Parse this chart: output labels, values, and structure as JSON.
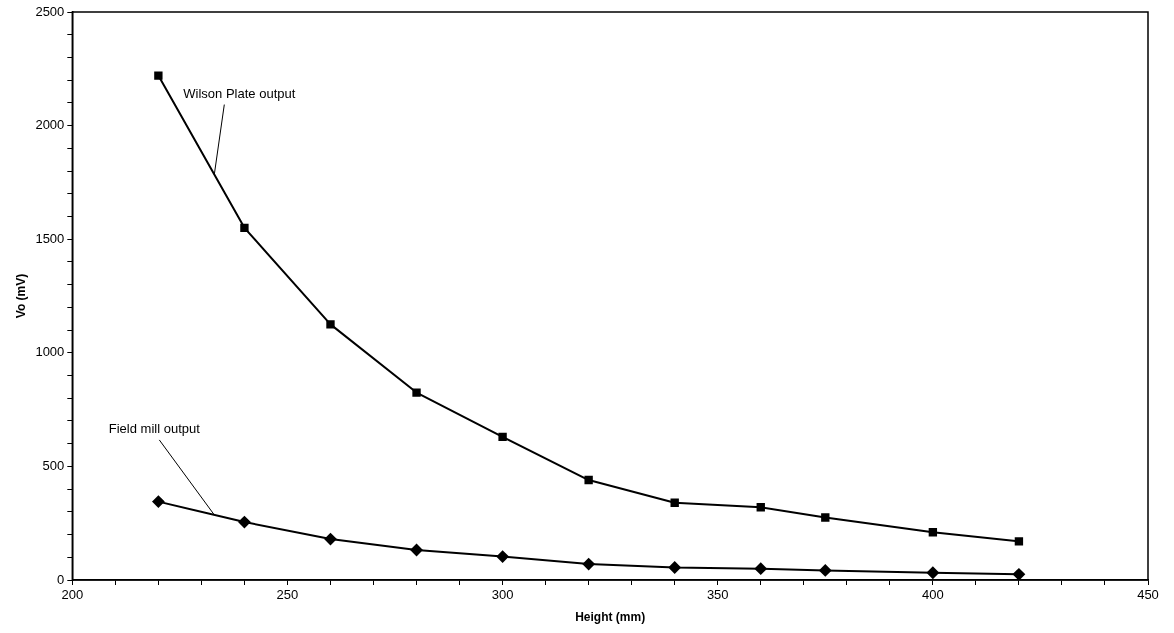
{
  "chart_data": {
    "type": "line",
    "xlabel": "Height (mm)",
    "ylabel": "Vo (mV)",
    "x": [
      220,
      240,
      260,
      280,
      300,
      320,
      340,
      360,
      375,
      400,
      420
    ],
    "series": [
      {
        "name": "Wilson Plate output",
        "color": "#000000",
        "marker": "square",
        "values": [
          2220,
          1550,
          1125,
          825,
          630,
          440,
          340,
          320,
          275,
          210,
          170
        ]
      },
      {
        "name": "Field mill output",
        "color": "#000000",
        "marker": "diamond",
        "values": [
          345,
          255,
          180,
          132,
          103,
          70,
          55,
          50,
          42,
          32,
          25
        ]
      }
    ],
    "xlim": [
      200,
      450
    ],
    "ylim": [
      0,
      2500
    ],
    "xticks": [
      200,
      {
        "value": 210,
        "label": null
      },
      {
        "value": 220,
        "label": null
      },
      {
        "value": 230,
        "label": null
      },
      {
        "value": 240,
        "label": null
      },
      250,
      {
        "value": 260,
        "label": null
      },
      {
        "value": 270,
        "label": null
      },
      {
        "value": 280,
        "label": null
      },
      {
        "value": 290,
        "label": null
      },
      300,
      {
        "value": 310,
        "label": null
      },
      {
        "value": 320,
        "label": null
      },
      {
        "value": 330,
        "label": null
      },
      {
        "value": 340,
        "label": null
      },
      350,
      {
        "value": 360,
        "label": null
      },
      {
        "value": 370,
        "label": null
      },
      {
        "value": 380,
        "label": null
      },
      {
        "value": 390,
        "label": null
      },
      400,
      {
        "value": 410,
        "label": null
      },
      {
        "value": 420,
        "label": null
      },
      {
        "value": 430,
        "label": null
      },
      {
        "value": 440,
        "label": null
      },
      450
    ],
    "yticks": [
      0,
      {
        "value": 100,
        "label": null
      },
      {
        "value": 200,
        "label": null
      },
      {
        "value": 300,
        "label": null
      },
      {
        "value": 400,
        "label": null
      },
      500,
      {
        "value": 600,
        "label": null
      },
      {
        "value": 700,
        "label": null
      },
      {
        "value": 800,
        "label": null
      },
      {
        "value": 900,
        "label": null
      },
      1000,
      {
        "value": 1100,
        "label": null
      },
      {
        "value": 1200,
        "label": null
      },
      {
        "value": 1300,
        "label": null
      },
      {
        "value": 1400,
        "label": null
      },
      1500,
      {
        "value": 1600,
        "label": null
      },
      {
        "value": 1700,
        "label": null
      },
      {
        "value": 1800,
        "label": null
      },
      {
        "value": 1900,
        "label": null
      },
      2000,
      {
        "value": 2100,
        "label": null
      },
      {
        "value": 2200,
        "label": null
      },
      {
        "value": 2300,
        "label": null
      },
      {
        "value": 2400,
        "label": null
      },
      2500
    ],
    "grid": false,
    "legend": false,
    "line_style": "solid"
  }
}
